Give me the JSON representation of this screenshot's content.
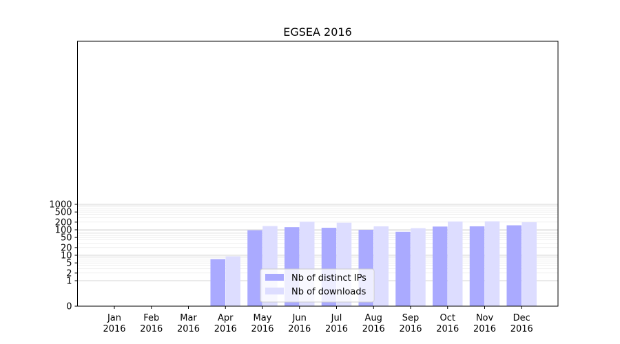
{
  "chart_data": {
    "type": "bar",
    "title": "EGSEA 2016",
    "xlabel": "",
    "ylabel": "",
    "categories": [
      "Jan\n2016",
      "Feb\n2016",
      "Mar\n2016",
      "Apr\n2016",
      "May\n2016",
      "Jun\n2016",
      "Jul\n2016",
      "Aug\n2016",
      "Sep\n2016",
      "Oct\n2016",
      "Nov\n2016",
      "Dec\n2016"
    ],
    "series": [
      {
        "name": "Nb of distinct IPs",
        "color": "#aaaaff",
        "values": [
          0,
          0,
          0,
          7,
          96,
          127,
          120,
          100,
          84,
          134,
          137,
          150
        ]
      },
      {
        "name": "Nb of downloads",
        "color": "#ddddff",
        "values": [
          0,
          0,
          0,
          9,
          140,
          208,
          190,
          136,
          115,
          212,
          216,
          198
        ]
      }
    ],
    "y_scale": "symlog",
    "yticks": [
      0,
      1,
      2,
      5,
      10,
      20,
      50,
      100,
      200,
      500,
      1000
    ],
    "ylim": [
      0,
      1300
    ],
    "grid": "horizontal",
    "legend_position": "bottom-center"
  }
}
